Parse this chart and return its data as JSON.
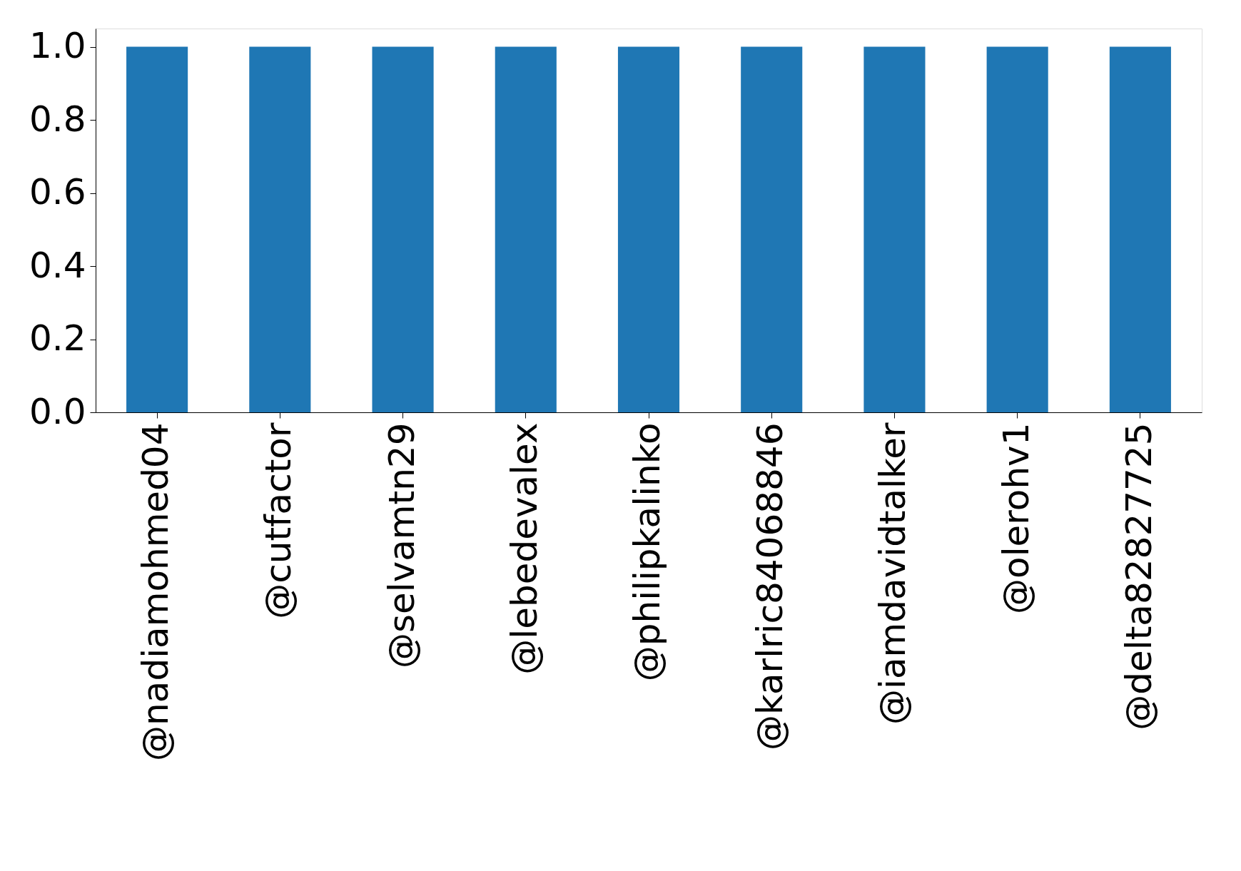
{
  "chart_data": {
    "type": "bar",
    "categories": [
      "@nadiamohmed04",
      "@cutfactor",
      "@selvamtn29",
      "@lebedevalex",
      "@philipkalinko",
      "@karlric84068846",
      "@iamdavidtalker",
      "@olerohv1",
      "@delta82827725"
    ],
    "values": [
      1,
      1,
      1,
      1,
      1,
      1,
      1,
      1,
      1
    ],
    "color": "#1f77b4",
    "ylim": [
      0,
      1.05
    ],
    "yticks": [
      {
        "value": 0,
        "label": "0.0"
      },
      {
        "value": 0.2,
        "label": "0.2"
      },
      {
        "value": 0.4,
        "label": "0.4"
      },
      {
        "value": 0.6,
        "label": "0.6"
      },
      {
        "value": 0.8,
        "label": "0.8"
      },
      {
        "value": 1,
        "label": "1.0"
      }
    ],
    "grid": false
  }
}
